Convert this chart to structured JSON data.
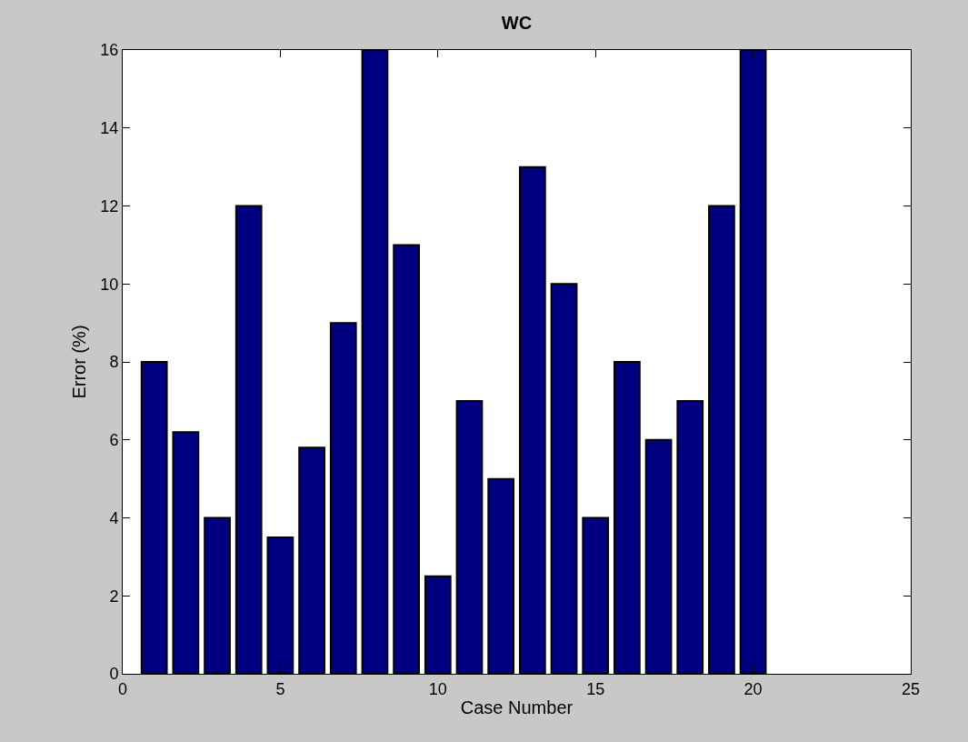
{
  "chart_data": {
    "type": "bar",
    "title": "WC",
    "xlabel": "Case Number",
    "ylabel": "Error (%)",
    "x": [
      1,
      2,
      3,
      4,
      5,
      6,
      7,
      8,
      9,
      10,
      11,
      12,
      13,
      14,
      15,
      16,
      17,
      18,
      19,
      20
    ],
    "values": [
      8,
      6.2,
      4,
      12,
      3.5,
      5.8,
      9,
      16,
      11,
      2.5,
      7,
      5,
      13,
      10,
      4,
      8,
      6,
      7,
      12,
      16
    ],
    "color": "#000080",
    "xlim": [
      0,
      25
    ],
    "xticks": [
      0,
      5,
      10,
      15,
      20,
      25
    ],
    "ylim": [
      0,
      16
    ],
    "yticks": [
      0,
      2,
      4,
      6,
      8,
      10,
      12,
      14,
      16
    ]
  }
}
